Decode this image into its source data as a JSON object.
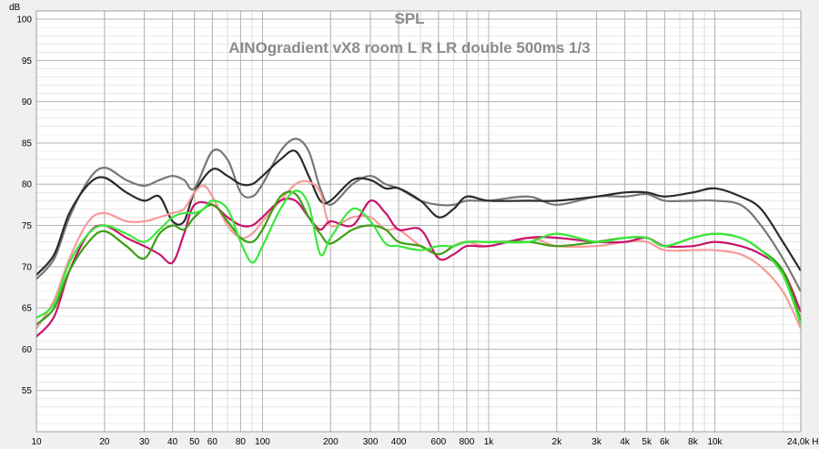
{
  "chart_data": {
    "type": "line",
    "title": "SPL",
    "subtitle": "AINOgradient vX8 room L R LR double 500ms 1/3",
    "ylabel": "dB",
    "xlabel_unit": "Hz",
    "x_scale": "log",
    "xlim": [
      10,
      24000
    ],
    "ylim": [
      50,
      101
    ],
    "grid": true,
    "y_ticks": [
      "100",
      "95",
      "90",
      "85",
      "80",
      "75",
      "70",
      "65",
      "60",
      "55"
    ],
    "x_ticks": [
      {
        "f": 10,
        "label": "10"
      },
      {
        "f": 20,
        "label": "20"
      },
      {
        "f": 30,
        "label": "30"
      },
      {
        "f": 40,
        "label": "40"
      },
      {
        "f": 50,
        "label": "50"
      },
      {
        "f": 60,
        "label": "60"
      },
      {
        "f": 80,
        "label": "80"
      },
      {
        "f": 100,
        "label": "100"
      },
      {
        "f": 200,
        "label": "200"
      },
      {
        "f": 300,
        "label": "300"
      },
      {
        "f": 400,
        "label": "400"
      },
      {
        "f": 600,
        "label": "600"
      },
      {
        "f": 800,
        "label": "800"
      },
      {
        "f": 1000,
        "label": "1k"
      },
      {
        "f": 2000,
        "label": "2k"
      },
      {
        "f": 3000,
        "label": "3k"
      },
      {
        "f": 4000,
        "label": "4k"
      },
      {
        "f": 5000,
        "label": "5k"
      },
      {
        "f": 6000,
        "label": "6k"
      },
      {
        "f": 8000,
        "label": "8k"
      },
      {
        "f": 10000,
        "label": "10k"
      },
      {
        "f": 24000,
        "label": "24,0k Hz"
      }
    ],
    "colors": {
      "background": "#f0f0f0",
      "plot_background": "#ffffff",
      "grid_major": "#b4b4b4",
      "grid_minor": "#dcdcdc"
    },
    "series": [
      {
        "color": "#777777",
        "x": [
          10,
          12,
          14,
          17,
          20,
          25,
          30,
          35,
          40,
          45,
          50,
          60,
          70,
          80,
          90,
          100,
          120,
          140,
          160,
          180,
          200,
          250,
          300,
          350,
          400,
          500,
          600,
          700,
          800,
          1000,
          1500,
          2000,
          3000,
          4000,
          5000,
          6000,
          8000,
          10000,
          13000,
          16000,
          20000,
          24000
        ],
        "y": [
          68.5,
          71,
          76,
          80.5,
          82,
          80.5,
          79.8,
          80.5,
          81,
          80.5,
          79.5,
          84,
          83,
          79,
          78.5,
          80,
          84,
          85.5,
          84,
          79.5,
          77.5,
          80,
          81,
          80,
          79.5,
          78,
          77.5,
          77.5,
          78,
          78,
          78.5,
          77.5,
          78.5,
          78.5,
          78.8,
          78,
          78,
          78,
          77.5,
          75,
          71,
          67
        ]
      },
      {
        "color": "#2b2b2b",
        "x": [
          10,
          12,
          14,
          17,
          20,
          25,
          30,
          35,
          40,
          45,
          50,
          60,
          70,
          80,
          90,
          100,
          120,
          140,
          160,
          180,
          200,
          250,
          300,
          350,
          400,
          500,
          600,
          700,
          800,
          1000,
          1500,
          2000,
          3000,
          4000,
          5000,
          6000,
          8000,
          10000,
          13000,
          16000,
          20000,
          24000
        ],
        "y": [
          69,
          71.5,
          76.5,
          80,
          80.8,
          79,
          78,
          78.5,
          75.5,
          75.5,
          79,
          81.8,
          81,
          80,
          80,
          81,
          83,
          84,
          81,
          78,
          78,
          80.5,
          80.5,
          79.5,
          79.5,
          78,
          76,
          77,
          78.5,
          78,
          78,
          78,
          78.5,
          79,
          79,
          78.5,
          79,
          79.5,
          78.5,
          77,
          73,
          69.5
        ]
      },
      {
        "color": "#f79a9a",
        "x": [
          10,
          12,
          14,
          17,
          20,
          25,
          30,
          35,
          40,
          45,
          50,
          55,
          60,
          70,
          80,
          90,
          100,
          120,
          140,
          160,
          180,
          200,
          250,
          300,
          350,
          400,
          500,
          600,
          700,
          800,
          1000,
          1500,
          2000,
          3000,
          4000,
          5000,
          6000,
          8000,
          10000,
          13000,
          16000,
          20000,
          24000
        ],
        "y": [
          62.5,
          66,
          71,
          75.5,
          76.5,
          75.5,
          75.5,
          76,
          76.5,
          77,
          79,
          79.8,
          78.5,
          75,
          73.5,
          74,
          75.5,
          78,
          80,
          80.3,
          79,
          75,
          76,
          76,
          74.5,
          74.5,
          72.5,
          71.5,
          72.5,
          73,
          72.5,
          73.5,
          72.5,
          72.5,
          73,
          73,
          72,
          72,
          72,
          71.5,
          70,
          67,
          62.5
        ]
      },
      {
        "color": "#c8146e",
        "x": [
          10,
          12,
          14,
          17,
          20,
          25,
          30,
          35,
          40,
          45,
          50,
          60,
          70,
          80,
          90,
          100,
          120,
          140,
          160,
          180,
          200,
          250,
          300,
          350,
          400,
          500,
          600,
          700,
          800,
          1000,
          1500,
          2000,
          3000,
          4000,
          5000,
          6000,
          8000,
          10000,
          13000,
          16000,
          20000,
          24000
        ],
        "y": [
          61.5,
          64,
          69.5,
          74,
          75,
          73.5,
          72.5,
          71.5,
          70.5,
          74,
          77.5,
          77.5,
          76,
          75,
          75,
          76,
          78,
          78,
          76,
          74.5,
          75.5,
          75,
          78,
          76.5,
          74.5,
          74.5,
          71,
          71.5,
          72.5,
          72.5,
          73.5,
          73.5,
          73,
          73,
          73.5,
          72.5,
          72.5,
          73,
          72.5,
          71.5,
          69.5,
          64.5
        ]
      },
      {
        "color": "#3c9e14",
        "x": [
          10,
          12,
          14,
          17,
          20,
          25,
          30,
          35,
          40,
          45,
          50,
          60,
          70,
          80,
          90,
          100,
          120,
          140,
          160,
          180,
          200,
          250,
          300,
          350,
          400,
          500,
          600,
          700,
          800,
          1000,
          1500,
          2000,
          3000,
          4000,
          5000,
          6000,
          8000,
          10000,
          13000,
          16000,
          20000,
          24000
        ],
        "y": [
          63,
          65,
          69.5,
          73,
          74.3,
          72.5,
          71,
          74,
          75,
          74.5,
          76,
          77.5,
          75.5,
          73.5,
          73,
          74.5,
          78.5,
          78.8,
          76,
          74,
          72.8,
          74.5,
          75,
          74.5,
          73,
          72.5,
          71.5,
          72.5,
          73,
          73,
          73,
          72.5,
          73,
          73.5,
          73.5,
          72.5,
          73.5,
          74,
          73.5,
          72,
          69.5,
          63.5
        ]
      },
      {
        "color": "#3ae83a",
        "x": [
          10,
          12,
          14,
          17,
          20,
          25,
          30,
          35,
          40,
          45,
          50,
          55,
          60,
          70,
          80,
          90,
          100,
          120,
          140,
          160,
          180,
          200,
          250,
          300,
          350,
          400,
          500,
          600,
          700,
          800,
          1000,
          1500,
          2000,
          3000,
          4000,
          5000,
          6000,
          8000,
          10000,
          13000,
          16000,
          20000,
          24000
        ],
        "y": [
          63.8,
          65.5,
          70.5,
          74,
          75,
          74,
          73,
          74.5,
          76,
          76.5,
          76.5,
          77,
          78,
          77,
          73,
          70.5,
          72.5,
          77,
          79.2,
          77.5,
          71.5,
          73.5,
          77,
          75.5,
          72.8,
          72.5,
          72,
          72.5,
          72.5,
          73,
          73,
          73,
          74,
          73,
          73.5,
          73.5,
          72.5,
          73.5,
          74,
          73.5,
          72,
          69,
          63
        ]
      }
    ]
  }
}
